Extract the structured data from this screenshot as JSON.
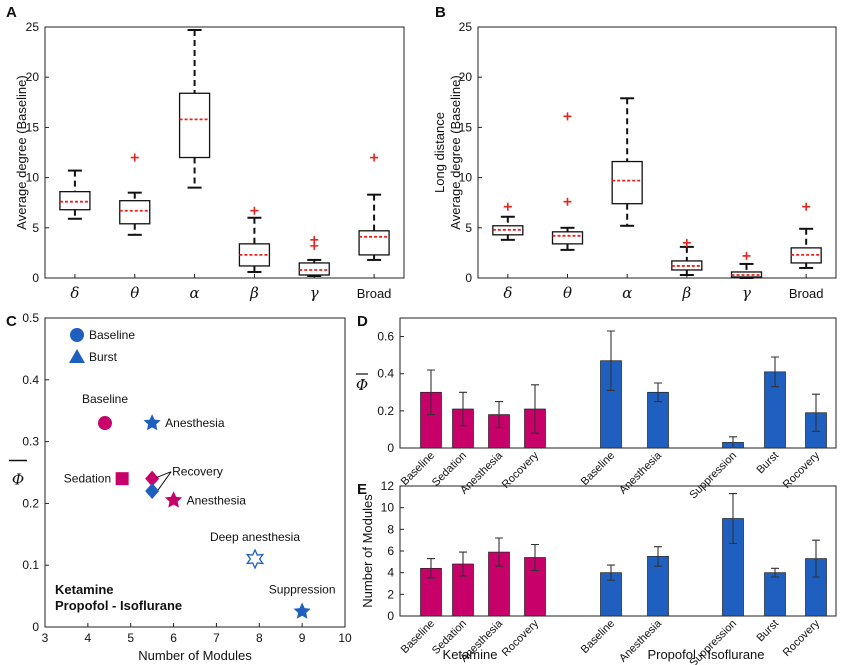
{
  "colors": {
    "ketamine": "#c8006a",
    "propofol": "#1f5fbf",
    "median": "#e8231e",
    "outlier": "#e8231e"
  },
  "chart_data": [
    {
      "panel": "A",
      "type": "box",
      "ylabel": "Average degree (Baseline)",
      "ylim": [
        0,
        25
      ],
      "yticks": [
        "0",
        "5",
        "10",
        "15",
        "20",
        "25"
      ],
      "categories": [
        "δ",
        "θ",
        "α",
        "β",
        "γ",
        "Broad"
      ],
      "boxes": [
        {
          "whislo": 5.9,
          "q1": 6.8,
          "med": 7.6,
          "q3": 8.6,
          "whishi": 10.7,
          "fliers": []
        },
        {
          "whislo": 4.3,
          "q1": 5.4,
          "med": 6.7,
          "q3": 7.7,
          "whishi": 8.5,
          "fliers": [
            12.0
          ]
        },
        {
          "whislo": 9.0,
          "q1": 12.0,
          "med": 15.8,
          "q3": 18.4,
          "whishi": 24.7,
          "fliers": []
        },
        {
          "whislo": 0.6,
          "q1": 1.2,
          "med": 2.3,
          "q3": 3.4,
          "whishi": 6.0,
          "fliers": [
            6.7
          ]
        },
        {
          "whislo": 0.2,
          "q1": 0.3,
          "med": 0.8,
          "q3": 1.5,
          "whishi": 1.8,
          "fliers": [
            3.2,
            3.8
          ]
        },
        {
          "whislo": 1.8,
          "q1": 2.3,
          "med": 4.1,
          "q3": 4.7,
          "whishi": 8.3,
          "fliers": [
            12.0
          ]
        }
      ]
    },
    {
      "panel": "B",
      "type": "box",
      "ylabel": [
        "Long distance",
        "Average degree (Baseline)"
      ],
      "ylim": [
        0,
        25
      ],
      "yticks": [
        "0",
        "5",
        "10",
        "15",
        "20",
        "25"
      ],
      "categories": [
        "δ",
        "θ",
        "α",
        "β",
        "γ",
        "Broad"
      ],
      "boxes": [
        {
          "whislo": 3.8,
          "q1": 4.3,
          "med": 4.8,
          "q3": 5.2,
          "whishi": 6.1,
          "fliers": [
            7.1
          ]
        },
        {
          "whislo": 2.8,
          "q1": 3.4,
          "med": 4.2,
          "q3": 4.6,
          "whishi": 5.0,
          "fliers": [
            7.6,
            16.1
          ]
        },
        {
          "whislo": 5.2,
          "q1": 7.4,
          "med": 9.7,
          "q3": 11.6,
          "whishi": 17.9,
          "fliers": []
        },
        {
          "whislo": 0.3,
          "q1": 0.8,
          "med": 1.2,
          "q3": 1.7,
          "whishi": 3.1,
          "fliers": [
            3.5
          ]
        },
        {
          "whislo": 0.0,
          "q1": 0.1,
          "med": 0.3,
          "q3": 0.6,
          "whishi": 1.4,
          "fliers": [
            2.2
          ]
        },
        {
          "whislo": 1.0,
          "q1": 1.5,
          "med": 2.3,
          "q3": 3.0,
          "whishi": 4.9,
          "fliers": [
            7.1
          ]
        }
      ]
    },
    {
      "panel": "C",
      "type": "scatter",
      "xlabel": "Number of Modules",
      "ylabel": "Φ",
      "xlim": [
        3,
        10
      ],
      "ylim": [
        0,
        0.5
      ],
      "xticks": [
        "3",
        "4",
        "5",
        "6",
        "7",
        "8",
        "9",
        "10"
      ],
      "yticks": [
        "0",
        "0.1",
        "0.2",
        "0.3",
        "0.4",
        "0.5"
      ],
      "legend": [
        {
          "label": "Baseline",
          "marker": "circle"
        },
        {
          "label": "Burst",
          "marker": "triangle"
        }
      ],
      "group_labels": [
        {
          "label": "Ketamine",
          "group": "ketamine"
        },
        {
          "label": "Propofol - Isoflurane",
          "group": "propofol"
        }
      ],
      "points": [
        {
          "label": "Baseline",
          "x": 4.4,
          "y": 0.33,
          "marker": "circle",
          "group": "ketamine"
        },
        {
          "label": "Sedation",
          "x": 4.8,
          "y": 0.24,
          "marker": "square",
          "group": "ketamine"
        },
        {
          "label": "Anesthesia",
          "x": 5.5,
          "y": 0.33,
          "marker": "star",
          "group": "propofol"
        },
        {
          "label": "Recovery",
          "x": 5.5,
          "y": 0.24,
          "marker": "diamond",
          "group": "ketamine"
        },
        {
          "label": "",
          "x": 5.5,
          "y": 0.22,
          "marker": "diamond",
          "group": "propofol"
        },
        {
          "label": "Anesthesia",
          "x": 6.0,
          "y": 0.205,
          "marker": "star",
          "group": "ketamine"
        },
        {
          "label": "Deep anesthesia",
          "x": 7.9,
          "y": 0.11,
          "marker": "star-open",
          "group": "propofol"
        },
        {
          "label": "Suppression",
          "x": 9.0,
          "y": 0.025,
          "marker": "star",
          "group": "propofol"
        }
      ]
    },
    {
      "panel": "D",
      "type": "bar",
      "ylabel": "Φ",
      "ylim": [
        0,
        0.7
      ],
      "yticks": [
        "0",
        "0.2",
        "0.4",
        "0.6"
      ],
      "categories": [
        "Baseline",
        "Sedation",
        "Anesthesia",
        "Rocovery",
        "Baseline",
        "Anesthesia",
        "Suppression",
        "Burst",
        "Rocovery"
      ],
      "groups": [
        "ketamine",
        "ketamine",
        "ketamine",
        "ketamine",
        "propofol",
        "propofol",
        "propofol",
        "propofol",
        "propofol"
      ],
      "values": [
        0.3,
        0.21,
        0.18,
        0.21,
        0.47,
        0.3,
        0.03,
        0.41,
        0.19
      ],
      "errors": [
        0.12,
        0.09,
        0.07,
        0.13,
        0.16,
        0.05,
        0.03,
        0.08,
        0.1
      ]
    },
    {
      "panel": "E",
      "type": "bar",
      "ylabel": "Number of Modules",
      "ylim": [
        0,
        12
      ],
      "yticks": [
        "0",
        "2",
        "4",
        "6",
        "8",
        "10",
        "12"
      ],
      "categories": [
        "Baseline",
        "Sedation",
        "Anesthesia",
        "Rocovery",
        "Baseline",
        "Anesthesia",
        "Suppression",
        "Burst",
        "Rocovery"
      ],
      "groups": [
        "ketamine",
        "ketamine",
        "ketamine",
        "ketamine",
        "propofol",
        "propofol",
        "propofol",
        "propofol",
        "propofol"
      ],
      "values": [
        4.4,
        4.8,
        5.9,
        5.4,
        4.0,
        5.5,
        9.0,
        4.0,
        5.3
      ],
      "errors": [
        0.9,
        1.1,
        1.3,
        1.2,
        0.7,
        0.9,
        2.3,
        0.4,
        1.7
      ],
      "group_labels": [
        "Ketamine",
        "Propofol - Isoflurane"
      ]
    }
  ]
}
